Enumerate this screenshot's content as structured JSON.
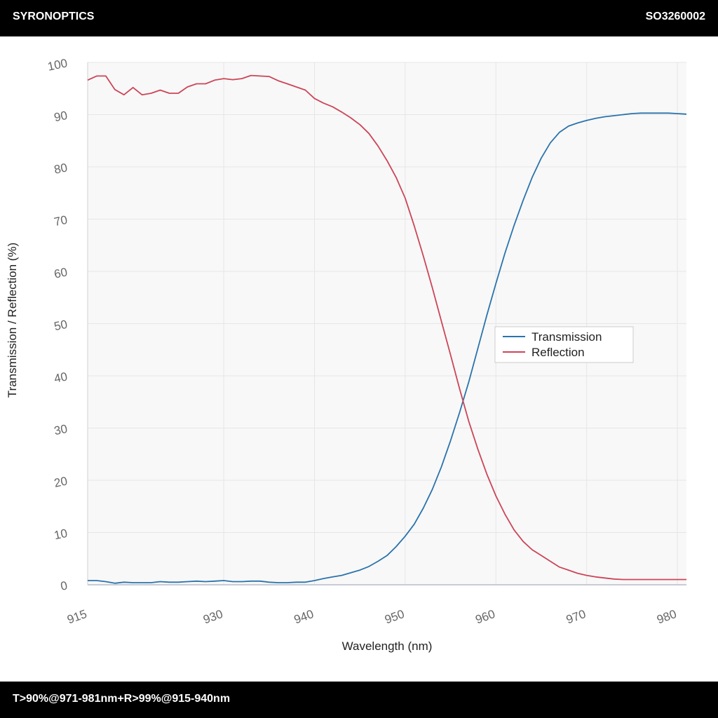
{
  "header": {
    "brand": "SYRONOPTICS",
    "part_number": "SO3260002"
  },
  "footer": {
    "spec": "T>90%@971-981nm+R>99%@915-940nm"
  },
  "colors": {
    "transmission": "#2a73ac",
    "reflection": "#cc4558",
    "plot_background": "#f8f8f8",
    "grid": "#e6e6e6",
    "axis_text": "#666666"
  },
  "chart_data": {
    "type": "line",
    "title": "",
    "xlabel": "Wavelength (nm)",
    "ylabel": "Transmission / Reflection (%)",
    "xlim": [
      915,
      981
    ],
    "ylim": [
      0,
      100
    ],
    "x_ticks": [
      915,
      930,
      940,
      950,
      960,
      970,
      980
    ],
    "y_ticks": [
      0,
      10,
      20,
      30,
      40,
      50,
      60,
      70,
      80,
      90,
      100
    ],
    "grid": true,
    "legend": {
      "placement": "center-right",
      "entries": [
        "Transmission",
        "Reflection"
      ]
    },
    "series": [
      {
        "name": "Transmission",
        "x": [
          915,
          916,
          917,
          918,
          919,
          920,
          921,
          922,
          923,
          924,
          925,
          926,
          927,
          928,
          929,
          930,
          931,
          932,
          933,
          934,
          935,
          936,
          937,
          938,
          939,
          940,
          941,
          942,
          943,
          944,
          945,
          946,
          947,
          948,
          949,
          950,
          951,
          952,
          953,
          954,
          955,
          956,
          957,
          958,
          959,
          960,
          961,
          962,
          963,
          964,
          965,
          966,
          967,
          968,
          969,
          970,
          971,
          972,
          973,
          974,
          975,
          976,
          977,
          978,
          979,
          980,
          981
        ],
        "values": [
          0.8,
          0.8,
          0.6,
          0.3,
          0.5,
          0.4,
          0.4,
          0.4,
          0.6,
          0.5,
          0.5,
          0.6,
          0.7,
          0.6,
          0.7,
          0.8,
          0.6,
          0.6,
          0.7,
          0.7,
          0.5,
          0.4,
          0.4,
          0.5,
          0.5,
          0.8,
          1.2,
          1.5,
          1.8,
          2.3,
          2.8,
          3.5,
          4.5,
          5.6,
          7.3,
          9.3,
          11.6,
          14.7,
          18.3,
          22.6,
          27.6,
          33.0,
          38.8,
          45.2,
          51.6,
          57.7,
          63.5,
          68.8,
          73.6,
          78.0,
          81.7,
          84.6,
          86.6,
          87.8,
          88.4,
          88.9,
          89.3,
          89.6,
          89.8,
          90.0,
          90.2,
          90.3,
          90.3,
          90.3,
          90.3,
          90.2,
          90.1
        ]
      },
      {
        "name": "Reflection",
        "x": [
          915,
          916,
          917,
          918,
          919,
          920,
          921,
          922,
          923,
          924,
          925,
          926,
          927,
          928,
          929,
          930,
          931,
          932,
          933,
          934,
          935,
          936,
          937,
          938,
          939,
          940,
          941,
          942,
          943,
          944,
          945,
          946,
          947,
          948,
          949,
          950,
          951,
          952,
          953,
          954,
          955,
          956,
          957,
          958,
          959,
          960,
          961,
          962,
          963,
          964,
          965,
          966,
          967,
          968,
          969,
          970,
          971,
          972,
          973,
          974,
          975,
          976,
          977,
          978,
          979,
          980,
          981
        ],
        "values": [
          96.6,
          97.4,
          97.4,
          94.8,
          93.8,
          95.2,
          93.8,
          94.1,
          94.7,
          94.1,
          94.1,
          95.3,
          95.9,
          95.9,
          96.6,
          96.9,
          96.7,
          96.9,
          97.5,
          97.4,
          97.3,
          96.5,
          95.9,
          95.3,
          94.7,
          93.1,
          92.2,
          91.5,
          90.5,
          89.4,
          88.1,
          86.4,
          84.0,
          81.2,
          78.0,
          74.0,
          68.7,
          62.9,
          56.8,
          50.4,
          44.0,
          37.5,
          31.3,
          26.0,
          21.2,
          17.0,
          13.5,
          10.5,
          8.3,
          6.7,
          5.6,
          4.5,
          3.4,
          2.8,
          2.2,
          1.8,
          1.5,
          1.3,
          1.1,
          1.0,
          1.0,
          1.0,
          1.0,
          1.0,
          1.0,
          1.0,
          1.0
        ]
      }
    ]
  }
}
